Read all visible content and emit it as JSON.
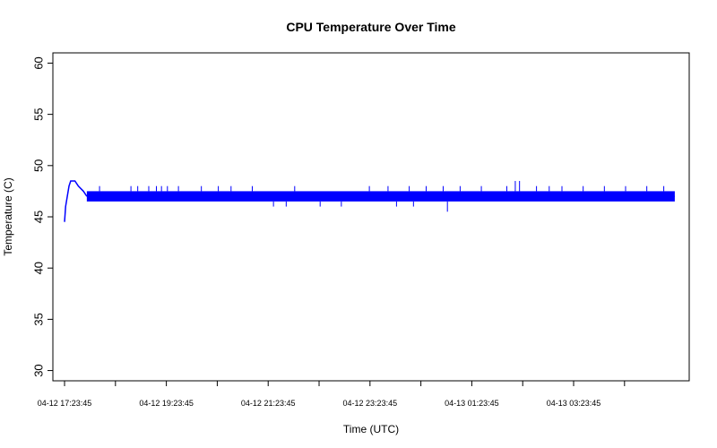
{
  "chart_data": {
    "type": "line",
    "title": "CPU Temperature Over Time",
    "xlabel": "Time (UTC)",
    "ylabel": "Temperature (C)",
    "ylim": [
      29,
      61
    ],
    "yticks": [
      30,
      35,
      40,
      45,
      50,
      55,
      60
    ],
    "xlim": [
      "2024-04-12T17:10:00Z",
      "2024-04-13T05:40:00Z"
    ],
    "xticks": [
      {
        "t": "2024-04-12T17:23:45Z",
        "label": "04-12 17:23:45"
      },
      {
        "t": "2024-04-12T18:23:45Z",
        "label": ""
      },
      {
        "t": "2024-04-12T19:23:45Z",
        "label": "04-12 19:23:45"
      },
      {
        "t": "2024-04-12T20:23:45Z",
        "label": ""
      },
      {
        "t": "2024-04-12T21:23:45Z",
        "label": "04-12 21:23:45"
      },
      {
        "t": "2024-04-12T22:23:45Z",
        "label": ""
      },
      {
        "t": "2024-04-12T23:23:45Z",
        "label": "04-12 23:23:45"
      },
      {
        "t": "2024-04-13T00:23:45Z",
        "label": ""
      },
      {
        "t": "2024-04-13T01:23:45Z",
        "label": "04-13 01:23:45"
      },
      {
        "t": "2024-04-13T02:23:45Z",
        "label": ""
      },
      {
        "t": "2024-04-13T03:23:45Z",
        "label": "04-13 03:23:45"
      },
      {
        "t": "2024-04-13T04:23:45Z",
        "label": ""
      }
    ],
    "grid": false,
    "legend": "none",
    "series": [
      {
        "name": "",
        "color": "#0000ff",
        "x_start": "2024-04-12T17:23:45Z",
        "x_end": "2024-04-13T05:23:00Z",
        "baseline": 47.0,
        "warmup": [
          {
            "t": "2024-04-12T17:23:45Z",
            "v": 44.5
          },
          {
            "t": "2024-04-12T17:25:00Z",
            "v": 46.0
          },
          {
            "t": "2024-04-12T17:27:00Z",
            "v": 47.0
          },
          {
            "t": "2024-04-12T17:29:00Z",
            "v": 48.0
          },
          {
            "t": "2024-04-12T17:31:00Z",
            "v": 48.5
          },
          {
            "t": "2024-04-12T17:36:00Z",
            "v": 48.5
          },
          {
            "t": "2024-04-12T17:40:00Z",
            "v": 48.0
          },
          {
            "t": "2024-04-12T17:46:00Z",
            "v": 47.5
          },
          {
            "t": "2024-04-12T17:50:00Z",
            "v": 47.0
          }
        ],
        "band": {
          "low": 46.5,
          "high": 47.5
        },
        "spikes_up": [
          {
            "t": "2024-04-12T18:05:00Z",
            "v": 48.0
          },
          {
            "t": "2024-04-12T18:42:00Z",
            "v": 48.0
          },
          {
            "t": "2024-04-12T18:50:00Z",
            "v": 48.0
          },
          {
            "t": "2024-04-12T19:03:00Z",
            "v": 48.0
          },
          {
            "t": "2024-04-12T19:12:00Z",
            "v": 48.0
          },
          {
            "t": "2024-04-12T19:18:00Z",
            "v": 48.0
          },
          {
            "t": "2024-04-12T19:25:00Z",
            "v": 48.0
          },
          {
            "t": "2024-04-12T19:38:00Z",
            "v": 48.0
          },
          {
            "t": "2024-04-12T20:05:00Z",
            "v": 48.0
          },
          {
            "t": "2024-04-12T20:25:00Z",
            "v": 48.0
          },
          {
            "t": "2024-04-12T20:40:00Z",
            "v": 48.0
          },
          {
            "t": "2024-04-12T21:05:00Z",
            "v": 48.0
          },
          {
            "t": "2024-04-12T21:55:00Z",
            "v": 48.0
          },
          {
            "t": "2024-04-12T23:23:00Z",
            "v": 48.0
          },
          {
            "t": "2024-04-12T23:45:00Z",
            "v": 48.0
          },
          {
            "t": "2024-04-13T00:10:00Z",
            "v": 48.0
          },
          {
            "t": "2024-04-13T00:30:00Z",
            "v": 48.0
          },
          {
            "t": "2024-04-13T00:50:00Z",
            "v": 48.0
          },
          {
            "t": "2024-04-13T01:10:00Z",
            "v": 48.0
          },
          {
            "t": "2024-04-13T01:35:00Z",
            "v": 48.0
          },
          {
            "t": "2024-04-13T02:05:00Z",
            "v": 48.0
          },
          {
            "t": "2024-04-13T02:15:00Z",
            "v": 48.5
          },
          {
            "t": "2024-04-13T02:20:00Z",
            "v": 48.5
          },
          {
            "t": "2024-04-13T02:40:00Z",
            "v": 48.0
          },
          {
            "t": "2024-04-13T02:55:00Z",
            "v": 48.0
          },
          {
            "t": "2024-04-13T03:10:00Z",
            "v": 48.0
          },
          {
            "t": "2024-04-13T03:35:00Z",
            "v": 48.0
          },
          {
            "t": "2024-04-13T04:00:00Z",
            "v": 48.0
          },
          {
            "t": "2024-04-13T04:25:00Z",
            "v": 48.0
          },
          {
            "t": "2024-04-13T04:50:00Z",
            "v": 48.0
          },
          {
            "t": "2024-04-13T05:10:00Z",
            "v": 48.0
          }
        ],
        "spikes_down": [
          {
            "t": "2024-04-12T21:30:00Z",
            "v": 46.0
          },
          {
            "t": "2024-04-12T21:45:00Z",
            "v": 46.0
          },
          {
            "t": "2024-04-12T22:25:00Z",
            "v": 46.0
          },
          {
            "t": "2024-04-12T22:50:00Z",
            "v": 46.0
          },
          {
            "t": "2024-04-12T23:55:00Z",
            "v": 46.0
          },
          {
            "t": "2024-04-13T00:15:00Z",
            "v": 46.0
          },
          {
            "t": "2024-04-13T00:55:00Z",
            "v": 45.5
          }
        ]
      }
    ]
  }
}
